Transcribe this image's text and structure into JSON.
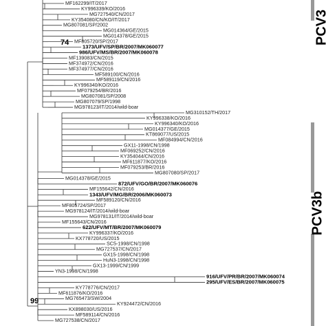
{
  "tree": {
    "leaves": [
      "MF162299/IT/2017",
      "KY996339/KO/2016",
      "MG727540/CN/2017",
      "KY354080/CN/KO/IT/2017",
      "MG807081/SP/2002",
      "MG014364/GE/2015",
      "MG014378/GE/2015",
      "MF805720/SP/2017",
      "1373/UFV/SP/BR/2007/MK060077",
      "986/UFV/MS/BR/2007/MK060078",
      "MF139083/CN/2015",
      "MF374972/CN/2016",
      "MF374977/CN/2016",
      "MF589100/CN/2016",
      "MF589119/CN/2016",
      "KY996340/KO/2016",
      "MF079254/BR/2016",
      "MG807081/SP/2008",
      "MG807079/SP/1998",
      "MG978123/IT/2014/wild-boar",
      "MG310152/TH/2017",
      "KY996338/KO/2016",
      "KY996340/KO/2016",
      "MG014377/GE/2015",
      "KT869077/US/2015",
      "MF084994/CN/2016",
      "GX11-1998/CN/1998",
      "MF069252/CN/2016",
      "KY354044/CN/2016",
      "MF611877/KO/2016",
      "MF079253/BR/2016",
      "MG807080/SP/2017",
      "MG014378/GE/2015",
      "872/UFV/GO/BR/2007/MK060076",
      "MF155642/CN/2016",
      "1343/UFV/MG/BR/2006/MK060073",
      "MF589120/CN/2016",
      "MF805724/SP/2017",
      "MG978124/IT/2014/wild-boar",
      "MG978131/IT/2014/wild-boar",
      "MF155643/CN/2016",
      "622/UFV/MT/BR/2007/MK060079",
      "KY996337/KO/2016",
      "KX778720/US/2015",
      "SC5-1998/CN/1998",
      "MG727537/CN/2017",
      "GX15-1998/CN/1998",
      "HuN3-1998/CN/1998",
      "GX13-1999/CN/1999",
      "YN3-1998/CN/1998",
      "916/UFV/PR/BR/2007/MK060074",
      "295/UFV/ES/BR/2007/MK060075",
      "KY778776/CN/2017",
      "MF611876/KO/2016",
      "MG765473/SW/2004",
      "KY924472/CN/2016",
      "KX898030/US/2016",
      "MF589114/CN/2016",
      "MG727538/CN/2017"
    ],
    "node_labels": [
      "74",
      "99"
    ],
    "clades": [
      "PCV3",
      "PCV3b"
    ]
  }
}
